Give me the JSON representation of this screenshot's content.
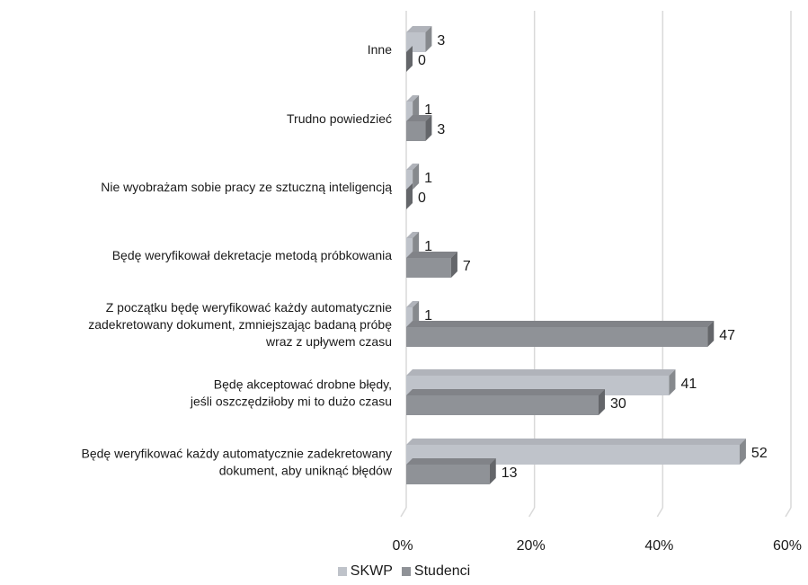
{
  "chart_data": {
    "type": "bar",
    "orientation": "horizontal",
    "style": "3d",
    "categories": [
      [
        "Inne"
      ],
      [
        "Trudno powiedzieć"
      ],
      [
        "Nie wyobrażam sobie pracy ze sztuczną inteligencją"
      ],
      [
        "Będę weryfikował dekretacje metodą próbkowania"
      ],
      [
        "Z początku będę weryfikować każdy automatycznie",
        "zadekretowany dokument, zmniejszając badaną próbę",
        "wraz z upływem czasu"
      ],
      [
        "Będę akceptować drobne błędy,",
        "jeśli oszczędziłoby mi to dużo czasu"
      ],
      [
        "Będę weryfikować każdy automatycznie zadekretowany",
        "dokument, aby uniknąć błędów"
      ]
    ],
    "series": [
      {
        "name": "SKWP",
        "color": "#bfc3ca",
        "values": [
          3,
          1,
          1,
          1,
          1,
          41,
          52
        ]
      },
      {
        "name": "Studenci",
        "color": "#8f9297",
        "values": [
          0,
          3,
          0,
          7,
          47,
          30,
          13
        ]
      }
    ],
    "x_ticks": [
      "0%",
      "20%",
      "40%",
      "60%"
    ],
    "xlim": [
      0,
      60
    ],
    "grid": true,
    "legend_position": "bottom"
  }
}
